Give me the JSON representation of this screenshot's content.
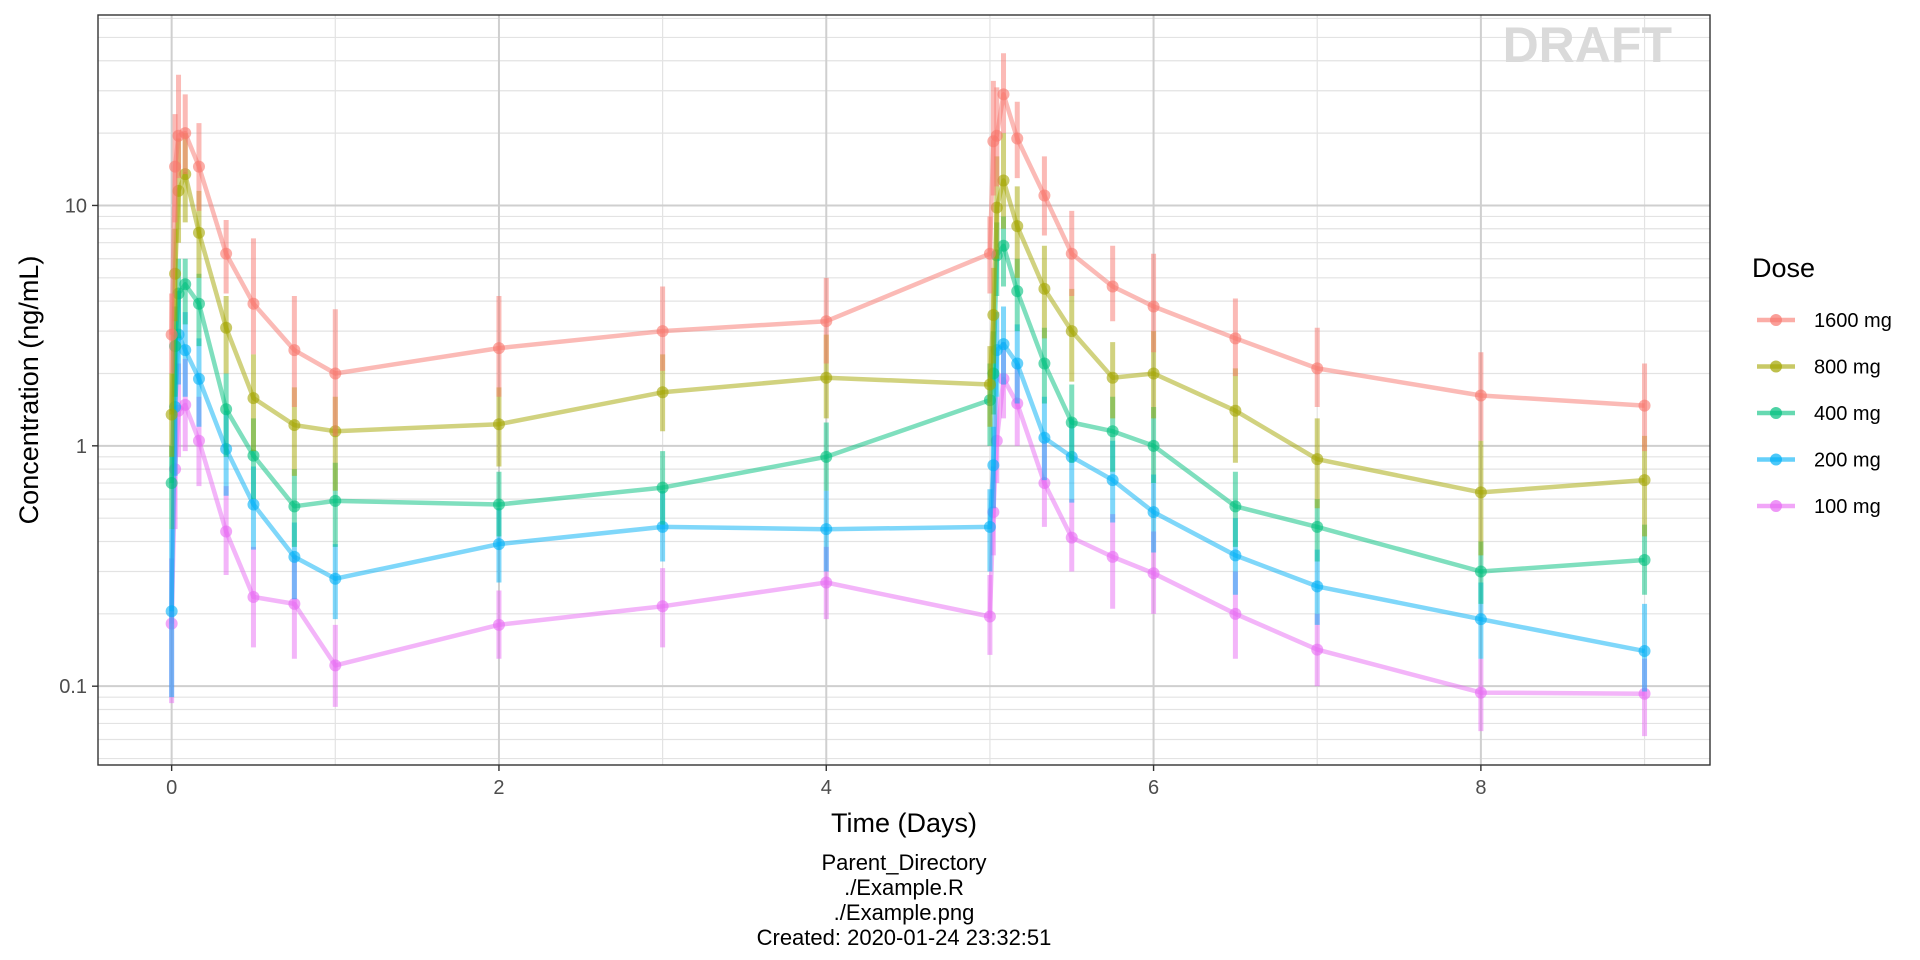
{
  "chart_data": {
    "type": "line",
    "title": "",
    "xlabel": "Time (Days)",
    "ylabel": "Concentration (ng/mL)",
    "y_scale": "log10",
    "xlim": [
      -0.45,
      9.4
    ],
    "ylim": [
      0.047,
      62
    ],
    "x_ticks": [
      0,
      2,
      4,
      6,
      8
    ],
    "y_ticks": [
      0.1,
      1,
      10
    ],
    "y_tick_labels": [
      "0.1",
      "1",
      "10"
    ],
    "grid": true,
    "watermark": "DRAFT",
    "legend": {
      "title": "Dose",
      "position": "right",
      "entries": [
        "1600 mg",
        "800 mg",
        "400 mg",
        "200 mg",
        "100 mg"
      ]
    },
    "caption": [
      "Parent_Directory",
      "./Example.R",
      "./Example.png",
      "Created: 2020-01-24 23:32:51"
    ],
    "series": [
      {
        "name": "1600 mg",
        "color": "#F8766D",
        "x": [
          0,
          0.021,
          0.042,
          0.083,
          0.167,
          0.333,
          0.5,
          0.75,
          1,
          2,
          3,
          4,
          5,
          5.021,
          5.042,
          5.083,
          5.167,
          5.333,
          5.5,
          5.75,
          6,
          6.5,
          7,
          8,
          9
        ],
        "y": [
          2.9,
          14.5,
          19.5,
          20,
          14.5,
          6.3,
          3.9,
          2.5,
          2.0,
          2.55,
          3.0,
          3.3,
          6.3,
          18.5,
          19.5,
          29,
          19,
          11,
          6.3,
          4.6,
          3.8,
          2.8,
          2.1,
          1.62,
          1.47
        ],
        "lower": [
          2.0,
          8.5,
          13,
          13.5,
          9.5,
          4.3,
          2.4,
          1.45,
          1.1,
          1.6,
          2.05,
          2.2,
          4.3,
          11,
          12,
          20,
          13,
          7.5,
          4.2,
          3.3,
          2.45,
          1.95,
          1.45,
          1.05,
          0.95
        ],
        "upper": [
          4.3,
          24,
          35,
          29,
          22,
          8.7,
          7.3,
          4.2,
          3.7,
          4.2,
          4.6,
          5.0,
          9.0,
          33,
          31,
          43,
          27,
          16,
          9.5,
          6.8,
          6.3,
          4.1,
          3.1,
          2.45,
          2.2
        ]
      },
      {
        "name": "800 mg",
        "color": "#A3A500",
        "x": [
          0,
          0.021,
          0.042,
          0.083,
          0.167,
          0.333,
          0.5,
          0.75,
          1,
          2,
          3,
          4,
          5,
          5.021,
          5.042,
          5.083,
          5.167,
          5.333,
          5.5,
          5.75,
          6,
          6.5,
          7,
          8,
          9
        ],
        "y": [
          1.35,
          5.2,
          11.5,
          13.5,
          7.7,
          3.1,
          1.58,
          1.22,
          1.15,
          1.23,
          1.67,
          1.92,
          1.8,
          3.5,
          9.8,
          12.7,
          8.2,
          4.5,
          3.0,
          1.92,
          2.0,
          1.4,
          0.88,
          0.64,
          0.72
        ],
        "lower": [
          0.9,
          3.3,
          7.0,
          8.5,
          5.0,
          2.0,
          0.95,
          0.75,
          0.65,
          0.82,
          1.15,
          1.3,
          1.2,
          2.2,
          6.0,
          8.0,
          5.0,
          2.8,
          1.85,
          1.3,
          1.3,
          0.85,
          0.55,
          0.35,
          0.42
        ],
        "upper": [
          2.0,
          8.0,
          19,
          20,
          11.5,
          4.2,
          2.4,
          1.75,
          1.6,
          1.75,
          2.4,
          2.9,
          2.6,
          5.5,
          16,
          20,
          12,
          6.8,
          4.5,
          2.7,
          3.0,
          2.1,
          1.3,
          1.05,
          1.1
        ]
      },
      {
        "name": "400 mg",
        "color": "#00BF7D",
        "x": [
          0,
          0.021,
          0.042,
          0.083,
          0.167,
          0.333,
          0.5,
          0.75,
          1,
          2,
          3,
          4,
          5,
          5.021,
          5.042,
          5.083,
          5.167,
          5.333,
          5.5,
          5.75,
          6,
          6.5,
          7,
          8,
          9
        ],
        "y": [
          0.7,
          2.6,
          4.3,
          4.7,
          3.9,
          1.42,
          0.91,
          0.56,
          0.59,
          0.57,
          0.67,
          0.9,
          1.55,
          2.0,
          6.2,
          6.8,
          4.4,
          2.2,
          1.25,
          1.15,
          1.0,
          0.56,
          0.46,
          0.3,
          0.335
        ],
        "lower": [
          0.45,
          1.6,
          2.8,
          3.2,
          2.6,
          0.9,
          0.6,
          0.38,
          0.38,
          0.42,
          0.47,
          0.65,
          1.0,
          1.35,
          4.2,
          4.6,
          3.0,
          1.5,
          0.85,
          0.78,
          0.7,
          0.38,
          0.33,
          0.22,
          0.24
        ],
        "upper": [
          1.0,
          3.8,
          6.0,
          6.0,
          5.2,
          2.0,
          1.3,
          0.8,
          0.85,
          0.78,
          0.95,
          1.25,
          2.2,
          3.0,
          8.5,
          9.0,
          6.0,
          3.1,
          1.8,
          1.6,
          1.45,
          0.78,
          0.6,
          0.4,
          0.47
        ]
      },
      {
        "name": "200 mg",
        "color": "#00B0F6",
        "x": [
          0,
          0.021,
          0.042,
          0.083,
          0.167,
          0.333,
          0.5,
          0.75,
          1,
          2,
          3,
          4,
          5,
          5.021,
          5.042,
          5.083,
          5.167,
          5.333,
          5.5,
          5.75,
          6,
          6.5,
          7,
          8,
          9
        ],
        "y": [
          0.205,
          1.45,
          2.9,
          2.5,
          1.9,
          0.97,
          0.57,
          0.345,
          0.28,
          0.39,
          0.46,
          0.45,
          0.46,
          0.83,
          2.5,
          2.65,
          2.2,
          1.08,
          0.9,
          0.72,
          0.53,
          0.35,
          0.26,
          0.19,
          0.14
        ],
        "lower": [
          0.09,
          0.75,
          1.8,
          1.6,
          1.2,
          0.62,
          0.37,
          0.23,
          0.19,
          0.27,
          0.33,
          0.3,
          0.3,
          0.55,
          1.6,
          1.8,
          1.5,
          0.72,
          0.58,
          0.48,
          0.36,
          0.24,
          0.18,
          0.13,
          0.095
        ],
        "upper": [
          0.45,
          2.8,
          4.4,
          3.6,
          2.8,
          1.4,
          0.82,
          0.48,
          0.39,
          0.55,
          0.65,
          0.65,
          0.66,
          1.2,
          3.6,
          3.8,
          3.2,
          1.6,
          1.3,
          1.05,
          0.76,
          0.5,
          0.37,
          0.27,
          0.22
        ]
      },
      {
        "name": "100 mg",
        "color": "#E76BF3",
        "x": [
          0,
          0.021,
          0.042,
          0.083,
          0.167,
          0.333,
          0.5,
          0.75,
          1,
          2,
          3,
          4,
          5,
          5.021,
          5.042,
          5.083,
          5.167,
          5.333,
          5.5,
          5.75,
          6,
          6.5,
          7,
          8,
          9
        ],
        "y": [
          0.182,
          0.8,
          1.4,
          1.48,
          1.05,
          0.44,
          0.235,
          0.22,
          0.122,
          0.18,
          0.215,
          0.27,
          0.195,
          0.53,
          1.05,
          1.9,
          1.5,
          0.7,
          0.415,
          0.345,
          0.295,
          0.2,
          0.142,
          0.094,
          0.093
        ],
        "lower": [
          0.085,
          0.45,
          0.9,
          0.95,
          0.68,
          0.29,
          0.145,
          0.13,
          0.082,
          0.13,
          0.145,
          0.19,
          0.135,
          0.35,
          0.7,
          1.3,
          1.0,
          0.46,
          0.3,
          0.21,
          0.2,
          0.13,
          0.1,
          0.065,
          0.062
        ],
        "upper": [
          0.34,
          1.4,
          2.2,
          2.3,
          1.6,
          0.68,
          0.38,
          0.35,
          0.18,
          0.25,
          0.31,
          0.38,
          0.29,
          0.82,
          1.6,
          2.7,
          2.2,
          1.05,
          0.6,
          0.52,
          0.44,
          0.3,
          0.2,
          0.13,
          0.13
        ]
      }
    ]
  }
}
